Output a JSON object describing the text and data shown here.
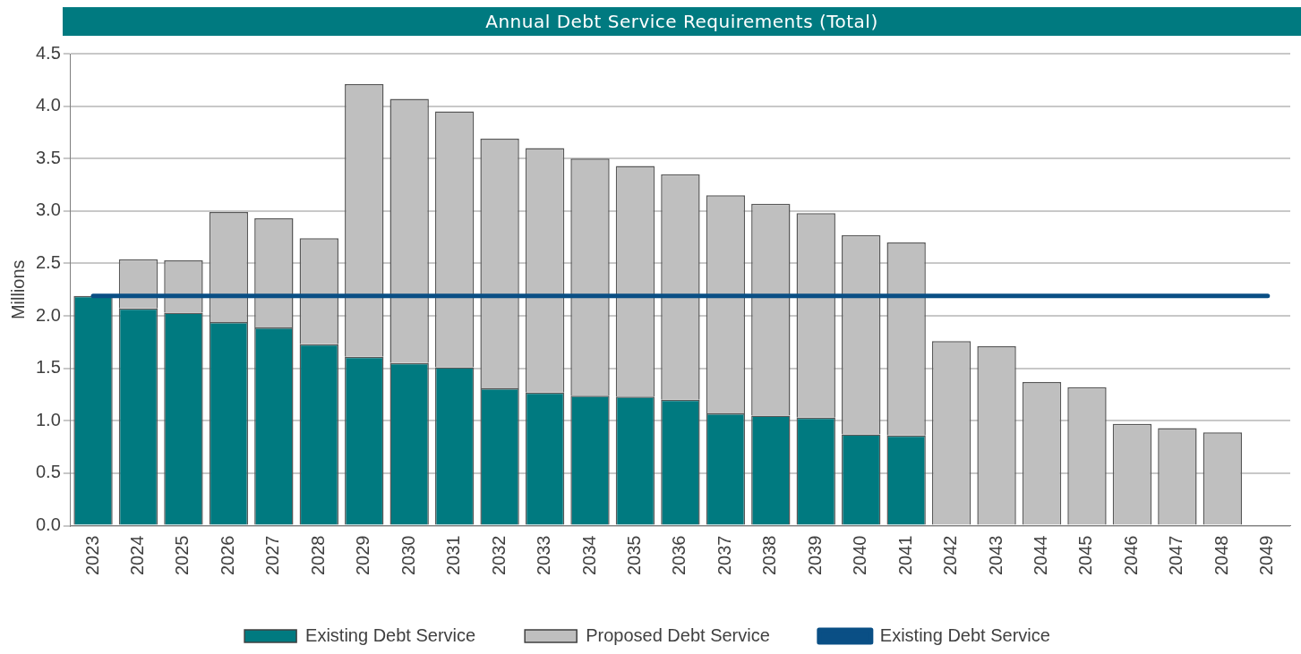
{
  "chart_data": {
    "type": "bar",
    "title": "Annual Debt Service Requirements (Total)",
    "ylabel": "Millions",
    "stacked": true,
    "categories": [
      "2023",
      "2024",
      "2025",
      "2026",
      "2027",
      "2028",
      "2029",
      "2030",
      "2031",
      "2032",
      "2033",
      "2034",
      "2035",
      "2036",
      "2037",
      "2038",
      "2039",
      "2040",
      "2041",
      "2042",
      "2043",
      "2044",
      "2045",
      "2046",
      "2047",
      "2048",
      "2049"
    ],
    "series": [
      {
        "name": "Existing Debt Service",
        "color": "#007a80",
        "values": [
          2.19,
          2.07,
          2.03,
          1.94,
          1.89,
          1.73,
          1.61,
          1.55,
          1.51,
          1.31,
          1.27,
          1.24,
          1.23,
          1.2,
          1.07,
          1.05,
          1.03,
          0.87,
          0.86,
          null,
          null,
          null,
          null,
          null,
          null,
          null,
          null
        ]
      },
      {
        "name": "Proposed Debt Service",
        "color": "#bfbfbf",
        "values": [
          null,
          0.47,
          0.5,
          1.05,
          1.04,
          1.01,
          2.6,
          2.52,
          2.44,
          2.38,
          2.33,
          2.26,
          2.2,
          2.15,
          2.08,
          2.02,
          1.95,
          1.9,
          1.84,
          1.76,
          1.71,
          1.37,
          1.32,
          0.97,
          0.93,
          0.89,
          null
        ]
      },
      {
        "name": "Existing Debt Service",
        "type": "line",
        "color": "#0a4f85",
        "values": [
          2.19,
          2.19,
          2.19,
          2.19,
          2.19,
          2.19,
          2.19,
          2.19,
          2.19,
          2.19,
          2.19,
          2.19,
          2.19,
          2.19,
          2.19,
          2.19,
          2.19,
          2.19,
          2.19,
          2.19,
          2.19,
          2.19,
          2.19,
          2.19,
          2.19,
          2.19,
          2.19
        ]
      }
    ],
    "ylim": [
      0,
      4.5
    ],
    "yticks": [
      {
        "value": 0,
        "label": "0.0"
      },
      {
        "value": 0.5,
        "label": "0.5"
      },
      {
        "value": 1,
        "label": "1.0"
      },
      {
        "value": 1.5,
        "label": "1.5"
      },
      {
        "value": 2,
        "label": "2.0"
      },
      {
        "value": 2.5,
        "label": "2.5"
      },
      {
        "value": 3,
        "label": "3.0"
      },
      {
        "value": 3.5,
        "label": "3.5"
      },
      {
        "value": 4,
        "label": "4.0"
      },
      {
        "value": 4.5,
        "label": "4.5"
      }
    ],
    "grid": "y",
    "legend": "bottom",
    "marker": "none",
    "line_style": "solid"
  }
}
